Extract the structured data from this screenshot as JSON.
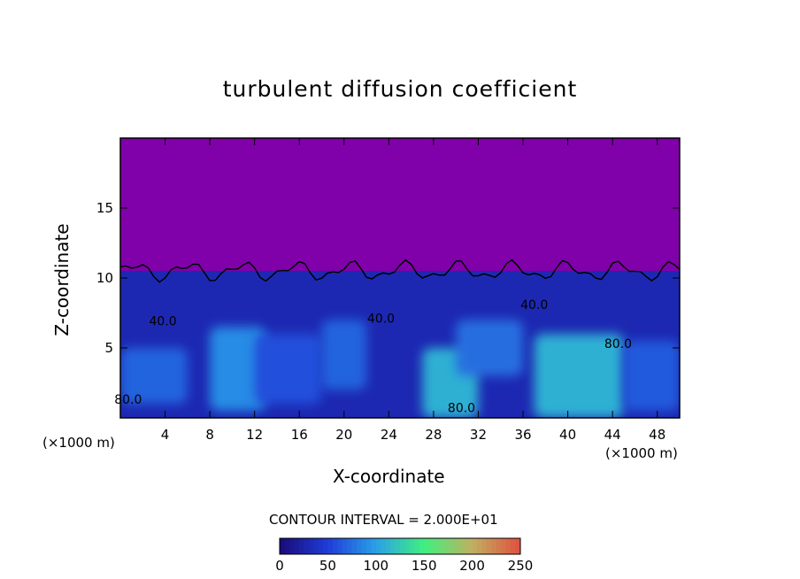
{
  "chart_data": {
    "type": "heatmap",
    "title": "turbulent diffusion coefficient",
    "xlabel": "X-coordinate",
    "ylabel": "Z-coordinate",
    "x_unit_left": "(×1000 m)",
    "x_unit_right": "(×1000 m)",
    "xlim": [
      0,
      50
    ],
    "ylim": [
      0,
      20
    ],
    "xticks": [
      4,
      8,
      12,
      16,
      20,
      24,
      28,
      32,
      36,
      40,
      44,
      48
    ],
    "yticks": [
      5,
      10,
      15
    ],
    "contour_interval_text": "CONTOUR INTERVAL = 2.000E+01",
    "contour_labels": [
      {
        "text": "40.0",
        "x": 3.8,
        "z": 6.6
      },
      {
        "text": "40.0",
        "x": 23.3,
        "z": 6.8
      },
      {
        "text": "40.0",
        "x": 37.0,
        "z": 7.8
      },
      {
        "text": "80.0",
        "x": 30.5,
        "z": 0.4
      },
      {
        "text": "80.0",
        "x": 0.7,
        "z": 1.0
      },
      {
        "text": "80.0",
        "x": 44.5,
        "z": 5.0
      }
    ],
    "colorbar": {
      "min": 0,
      "max": 250,
      "ticks": [
        0,
        50,
        100,
        150,
        200,
        250
      ],
      "colors": [
        "#1a0a78",
        "#1f3cd8",
        "#2aa0e8",
        "#40f080",
        "#c0b060",
        "#e05040"
      ]
    },
    "background_color": "#8000aa",
    "regions": [
      {
        "x": 0,
        "z": 0,
        "w": 50,
        "h": 10.5,
        "level": 30
      },
      {
        "x": 0,
        "z": 1,
        "w": 6,
        "h": 4,
        "level": 70
      },
      {
        "x": 8,
        "z": 0.5,
        "w": 5,
        "h": 6,
        "level": 90
      },
      {
        "x": 12,
        "z": 1,
        "w": 6,
        "h": 5,
        "level": 60
      },
      {
        "x": 18,
        "z": 2,
        "w": 4,
        "h": 5,
        "level": 70
      },
      {
        "x": 27,
        "z": 0,
        "w": 5,
        "h": 5,
        "level": 110
      },
      {
        "x": 30,
        "z": 3,
        "w": 6,
        "h": 4,
        "level": 75
      },
      {
        "x": 37,
        "z": 0,
        "w": 8,
        "h": 6,
        "level": 110
      },
      {
        "x": 45,
        "z": 0.5,
        "w": 5,
        "h": 5,
        "level": 65
      }
    ]
  }
}
